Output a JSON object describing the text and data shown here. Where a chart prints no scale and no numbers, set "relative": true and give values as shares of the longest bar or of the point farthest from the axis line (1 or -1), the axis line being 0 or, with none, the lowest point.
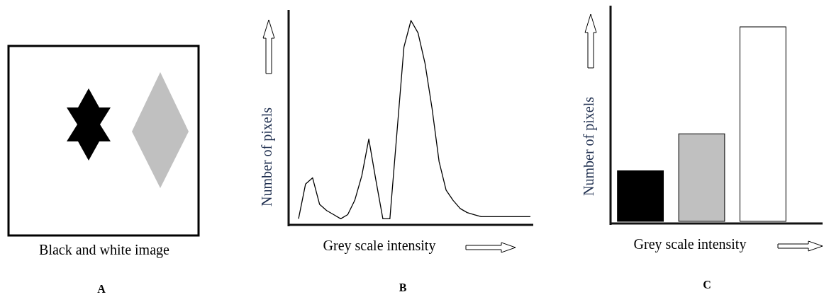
{
  "chart_data": [
    {
      "type": "other",
      "annotations": [
        "Black and white image",
        "A"
      ]
    },
    {
      "type": "line",
      "relative": true,
      "xlabel": "Grey scale intensity",
      "ylabel": "Number of pixels",
      "annotations": [
        "B"
      ],
      "categories": [
        null,
        null,
        null,
        null,
        null,
        null,
        null,
        null,
        null,
        null,
        null,
        null,
        null,
        null,
        null,
        null,
        null,
        null,
        null,
        null,
        null,
        null,
        null,
        null,
        null,
        null,
        null,
        null,
        null,
        null,
        null,
        null,
        null,
        null
      ],
      "series": [
        {
          "color": "#000000",
          "values": [
            0.03,
            0.2,
            0.23,
            0.1,
            0.07,
            0.05,
            0.03,
            0.05,
            0.12,
            0.24,
            0.42,
            0.22,
            0.03,
            0.03,
            0.45,
            0.87,
            1,
            0.94,
            0.79,
            0.57,
            0.31,
            0.17,
            0.12,
            0.08,
            0.06,
            0.05,
            0.04,
            0.04,
            0.04,
            0.04,
            0.04,
            0.04,
            0.04,
            0.04
          ]
        }
      ]
    },
    {
      "type": "bar",
      "relative": true,
      "xlabel": "Grey scale intensity",
      "ylabel": "Number of pixels",
      "annotations": [
        "C"
      ],
      "categories": [
        null,
        null,
        null
      ],
      "values": [
        0.26,
        0.45,
        1
      ],
      "colors": [
        "#000000",
        "#c0c0c0",
        "#ffffff"
      ]
    }
  ]
}
